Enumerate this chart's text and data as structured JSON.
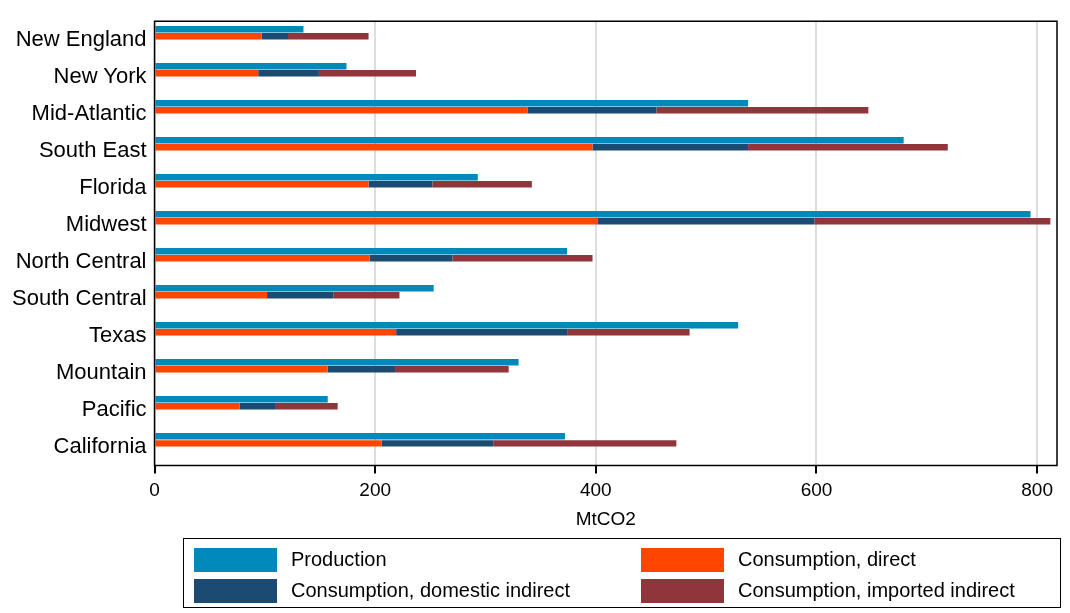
{
  "chart_data": {
    "type": "bar",
    "orientation": "horizontal",
    "xlabel": "MtCO2",
    "categories": [
      "New England",
      "New York",
      "Mid-Atlantic",
      "South East",
      "Florida",
      "Midwest",
      "North Central",
      "South Central",
      "Texas",
      "Mountain",
      "Pacific",
      "California"
    ],
    "series": [
      {
        "name": "Production",
        "color": "#0189bb",
        "values": [
          135,
          174,
          538,
          679,
          293,
          794,
          374,
          253,
          529,
          330,
          157,
          372
        ]
      },
      {
        "name": "Consumption, direct",
        "color": "#ff4500",
        "values": [
          97,
          94,
          338,
          397,
          194,
          402,
          195,
          102,
          219,
          157,
          77,
          206
        ],
        "base": [
          0,
          0,
          0,
          0,
          0,
          0,
          0,
          0,
          0,
          0,
          0,
          0
        ]
      },
      {
        "name": "Consumption, domestic indirect",
        "color": "#1b4a72",
        "values": [
          24,
          55,
          117,
          141,
          58,
          196,
          75,
          60,
          155,
          61,
          33,
          101
        ],
        "base": [
          97,
          94,
          338,
          397,
          194,
          402,
          195,
          102,
          219,
          157,
          77,
          206
        ]
      },
      {
        "name": "Consumption, imported indirect",
        "color": "#90353b",
        "values": [
          73,
          88,
          192,
          181,
          90,
          214,
          127,
          60,
          111,
          103,
          56,
          166
        ],
        "base": [
          121,
          149,
          455,
          538,
          252,
          598,
          270,
          162,
          374,
          218,
          110,
          307
        ]
      }
    ],
    "xlim": [
      0,
      818
    ],
    "xticks": [
      0,
      200,
      400,
      600,
      800
    ],
    "grid": "x",
    "legend": "bottom"
  }
}
